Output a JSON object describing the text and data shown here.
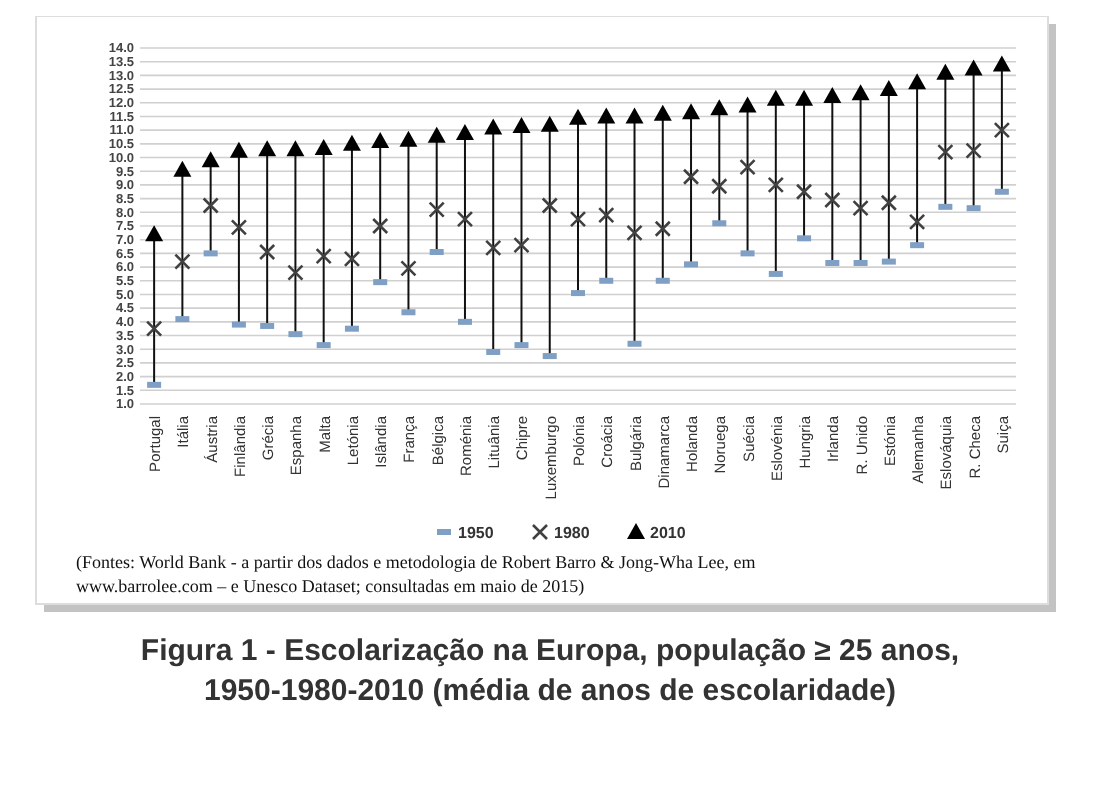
{
  "chart_data": {
    "type": "scatter",
    "title": "Figura 1 - Escolarização na Europa, população ≥  25 anos, 1950-1980-2010 (média de anos de escolaridade)",
    "annotations": [
      "(Fontes: World Bank - a partir dos dados e metodologia de Robert Barro & Jong-Wha Lee, em www.barrolee.com – e Unesco Dataset; consultadas em maio de 2015)"
    ],
    "categories": [
      "Portugal",
      "Itália",
      "Áustria",
      "Finlândia",
      "Grécia",
      "Espanha",
      "Malta",
      "Letónia",
      "Islândia",
      "França",
      "Bélgica",
      "Roménia",
      "Lituânia",
      "Chipre",
      "Luxemburgo",
      "Polónia",
      "Croácia",
      "Bulgária",
      "Dinamarca",
      "Holanda",
      "Noruega",
      "Suécia",
      "Eslovénia",
      "Hungria",
      "Irlanda",
      "R. Unido",
      "Estónia",
      "Alemanha",
      "Eslováquia",
      "R. Checa",
      "Suiça"
    ],
    "series": [
      {
        "name": "1950",
        "color": "#7f9fc4",
        "marker": "square",
        "values": [
          1.7,
          4.1,
          6.5,
          3.9,
          3.85,
          3.55,
          3.15,
          3.75,
          5.45,
          4.35,
          6.55,
          4.0,
          2.9,
          3.15,
          2.75,
          5.05,
          5.5,
          3.2,
          5.5,
          6.1,
          7.6,
          6.5,
          5.75,
          7.05,
          6.15,
          6.15,
          6.2,
          6.8,
          8.2,
          8.15,
          8.75
        ]
      },
      {
        "name": "1980",
        "color": "#404040",
        "marker": "cross",
        "values": [
          3.75,
          6.2,
          8.25,
          7.45,
          6.55,
          5.8,
          6.4,
          6.3,
          7.5,
          5.95,
          8.1,
          7.75,
          6.7,
          6.8,
          8.25,
          7.75,
          7.9,
          7.25,
          7.4,
          9.3,
          8.95,
          9.65,
          9.0,
          8.75,
          8.45,
          8.15,
          8.35,
          7.65,
          10.2,
          10.25,
          11.0
        ]
      },
      {
        "name": "2010",
        "color": "#000000",
        "marker": "triangle",
        "values": [
          7.2,
          9.55,
          9.9,
          10.25,
          10.3,
          10.3,
          10.35,
          10.5,
          10.6,
          10.65,
          10.8,
          10.9,
          11.1,
          11.15,
          11.2,
          11.45,
          11.5,
          11.5,
          11.6,
          11.65,
          11.8,
          11.9,
          12.15,
          12.15,
          12.25,
          12.35,
          12.5,
          12.75,
          13.1,
          13.25,
          13.4
        ]
      }
    ],
    "ylim": [
      1,
      14
    ],
    "yticks": [
      {
        "value": 1,
        "label": "1.0"
      },
      {
        "value": 1.5,
        "label": "1.5"
      },
      {
        "value": 2,
        "label": "2.0"
      },
      {
        "value": 2.5,
        "label": "2.5"
      },
      {
        "value": 3,
        "label": "3.0"
      },
      {
        "value": 3.5,
        "label": "3.5"
      },
      {
        "value": 4,
        "label": "4.0"
      },
      {
        "value": 4.5,
        "label": "4.5"
      },
      {
        "value": 5,
        "label": "5.0"
      },
      {
        "value": 5.5,
        "label": "5.5"
      },
      {
        "value": 6,
        "label": "6.0"
      },
      {
        "value": 6.5,
        "label": "6.5"
      },
      {
        "value": 7,
        "label": "7.0"
      },
      {
        "value": 7.5,
        "label": "7.5"
      },
      {
        "value": 8,
        "label": "8.0"
      },
      {
        "value": 8.5,
        "label": "8.5"
      },
      {
        "value": 9,
        "label": "9.0"
      },
      {
        "value": 9.5,
        "label": "9.5"
      },
      {
        "value": 10,
        "label": "10.0"
      },
      {
        "value": 10.5,
        "label": "10.5"
      },
      {
        "value": 11,
        "label": "11.0"
      },
      {
        "value": 11.5,
        "label": "11.5"
      },
      {
        "value": 12,
        "label": "12.0"
      },
      {
        "value": 12.5,
        "label": "12.5"
      },
      {
        "value": 13,
        "label": "13.0"
      },
      {
        "value": 13.5,
        "label": "13.5"
      },
      {
        "value": 14,
        "label": "14.0"
      }
    ],
    "grid": "y",
    "legend": "bottom"
  }
}
